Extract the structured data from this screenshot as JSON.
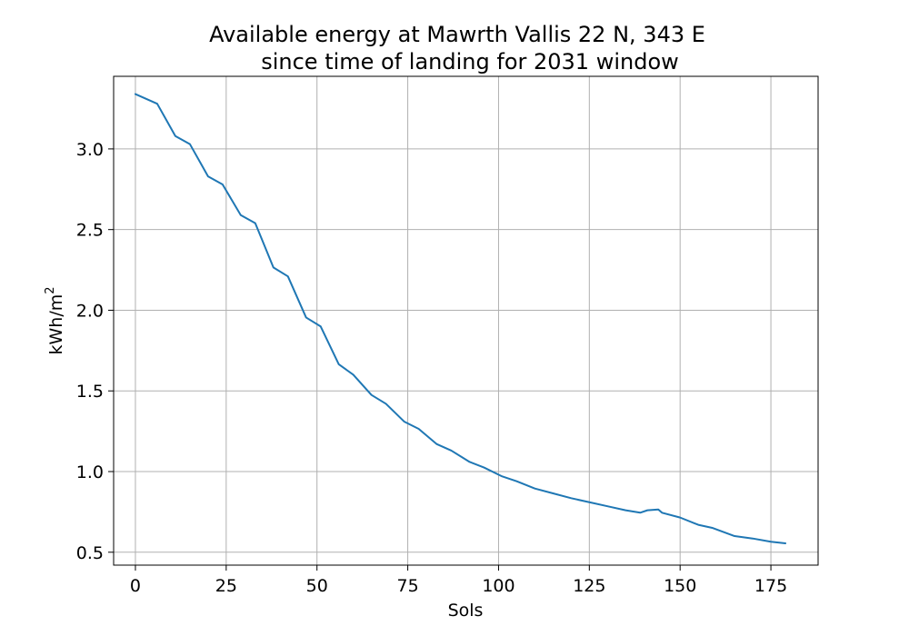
{
  "chart_data": {
    "type": "line",
    "title": [
      "Available energy at Mawrth Vallis 22 N, 343 E",
      "since time of landing for 2031 window"
    ],
    "xlabel": "Sols",
    "ylabel": "kWh/m",
    "ylabel_sup": "2",
    "xlim": [
      -6,
      188
    ],
    "ylim": [
      0.42,
      3.45
    ],
    "xticks": [
      0,
      25,
      50,
      75,
      100,
      125,
      150,
      175
    ],
    "yticks": [
      0.5,
      1.0,
      1.5,
      2.0,
      2.5,
      3.0
    ],
    "xtick_labels": [
      "0",
      "25",
      "50",
      "75",
      "100",
      "125",
      "150",
      "175"
    ],
    "ytick_labels": [
      "0.5",
      "1.0",
      "1.5",
      "2.0",
      "2.5",
      "3.0"
    ],
    "grid": true,
    "series_color": "#1f77b4",
    "series": [
      {
        "x": [
          0,
          6,
          11,
          15,
          18,
          20,
          24,
          29,
          33,
          38,
          42,
          47,
          51,
          56,
          60,
          65,
          69,
          74,
          78,
          83,
          87,
          92,
          96,
          101,
          105,
          110,
          115,
          120,
          125,
          130,
          135,
          139,
          141,
          144,
          145,
          150,
          155,
          159,
          165,
          170,
          175,
          179
        ],
        "y": [
          3.34,
          3.28,
          3.08,
          3.03,
          2.91,
          2.83,
          2.78,
          2.59,
          2.54,
          2.265,
          2.21,
          1.955,
          1.9,
          1.665,
          1.6,
          1.475,
          1.42,
          1.31,
          1.265,
          1.17,
          1.13,
          1.06,
          1.025,
          0.97,
          0.94,
          0.895,
          0.865,
          0.835,
          0.81,
          0.785,
          0.76,
          0.745,
          0.76,
          0.765,
          0.745,
          0.715,
          0.67,
          0.65,
          0.6,
          0.585,
          0.565,
          0.555
        ]
      }
    ]
  }
}
